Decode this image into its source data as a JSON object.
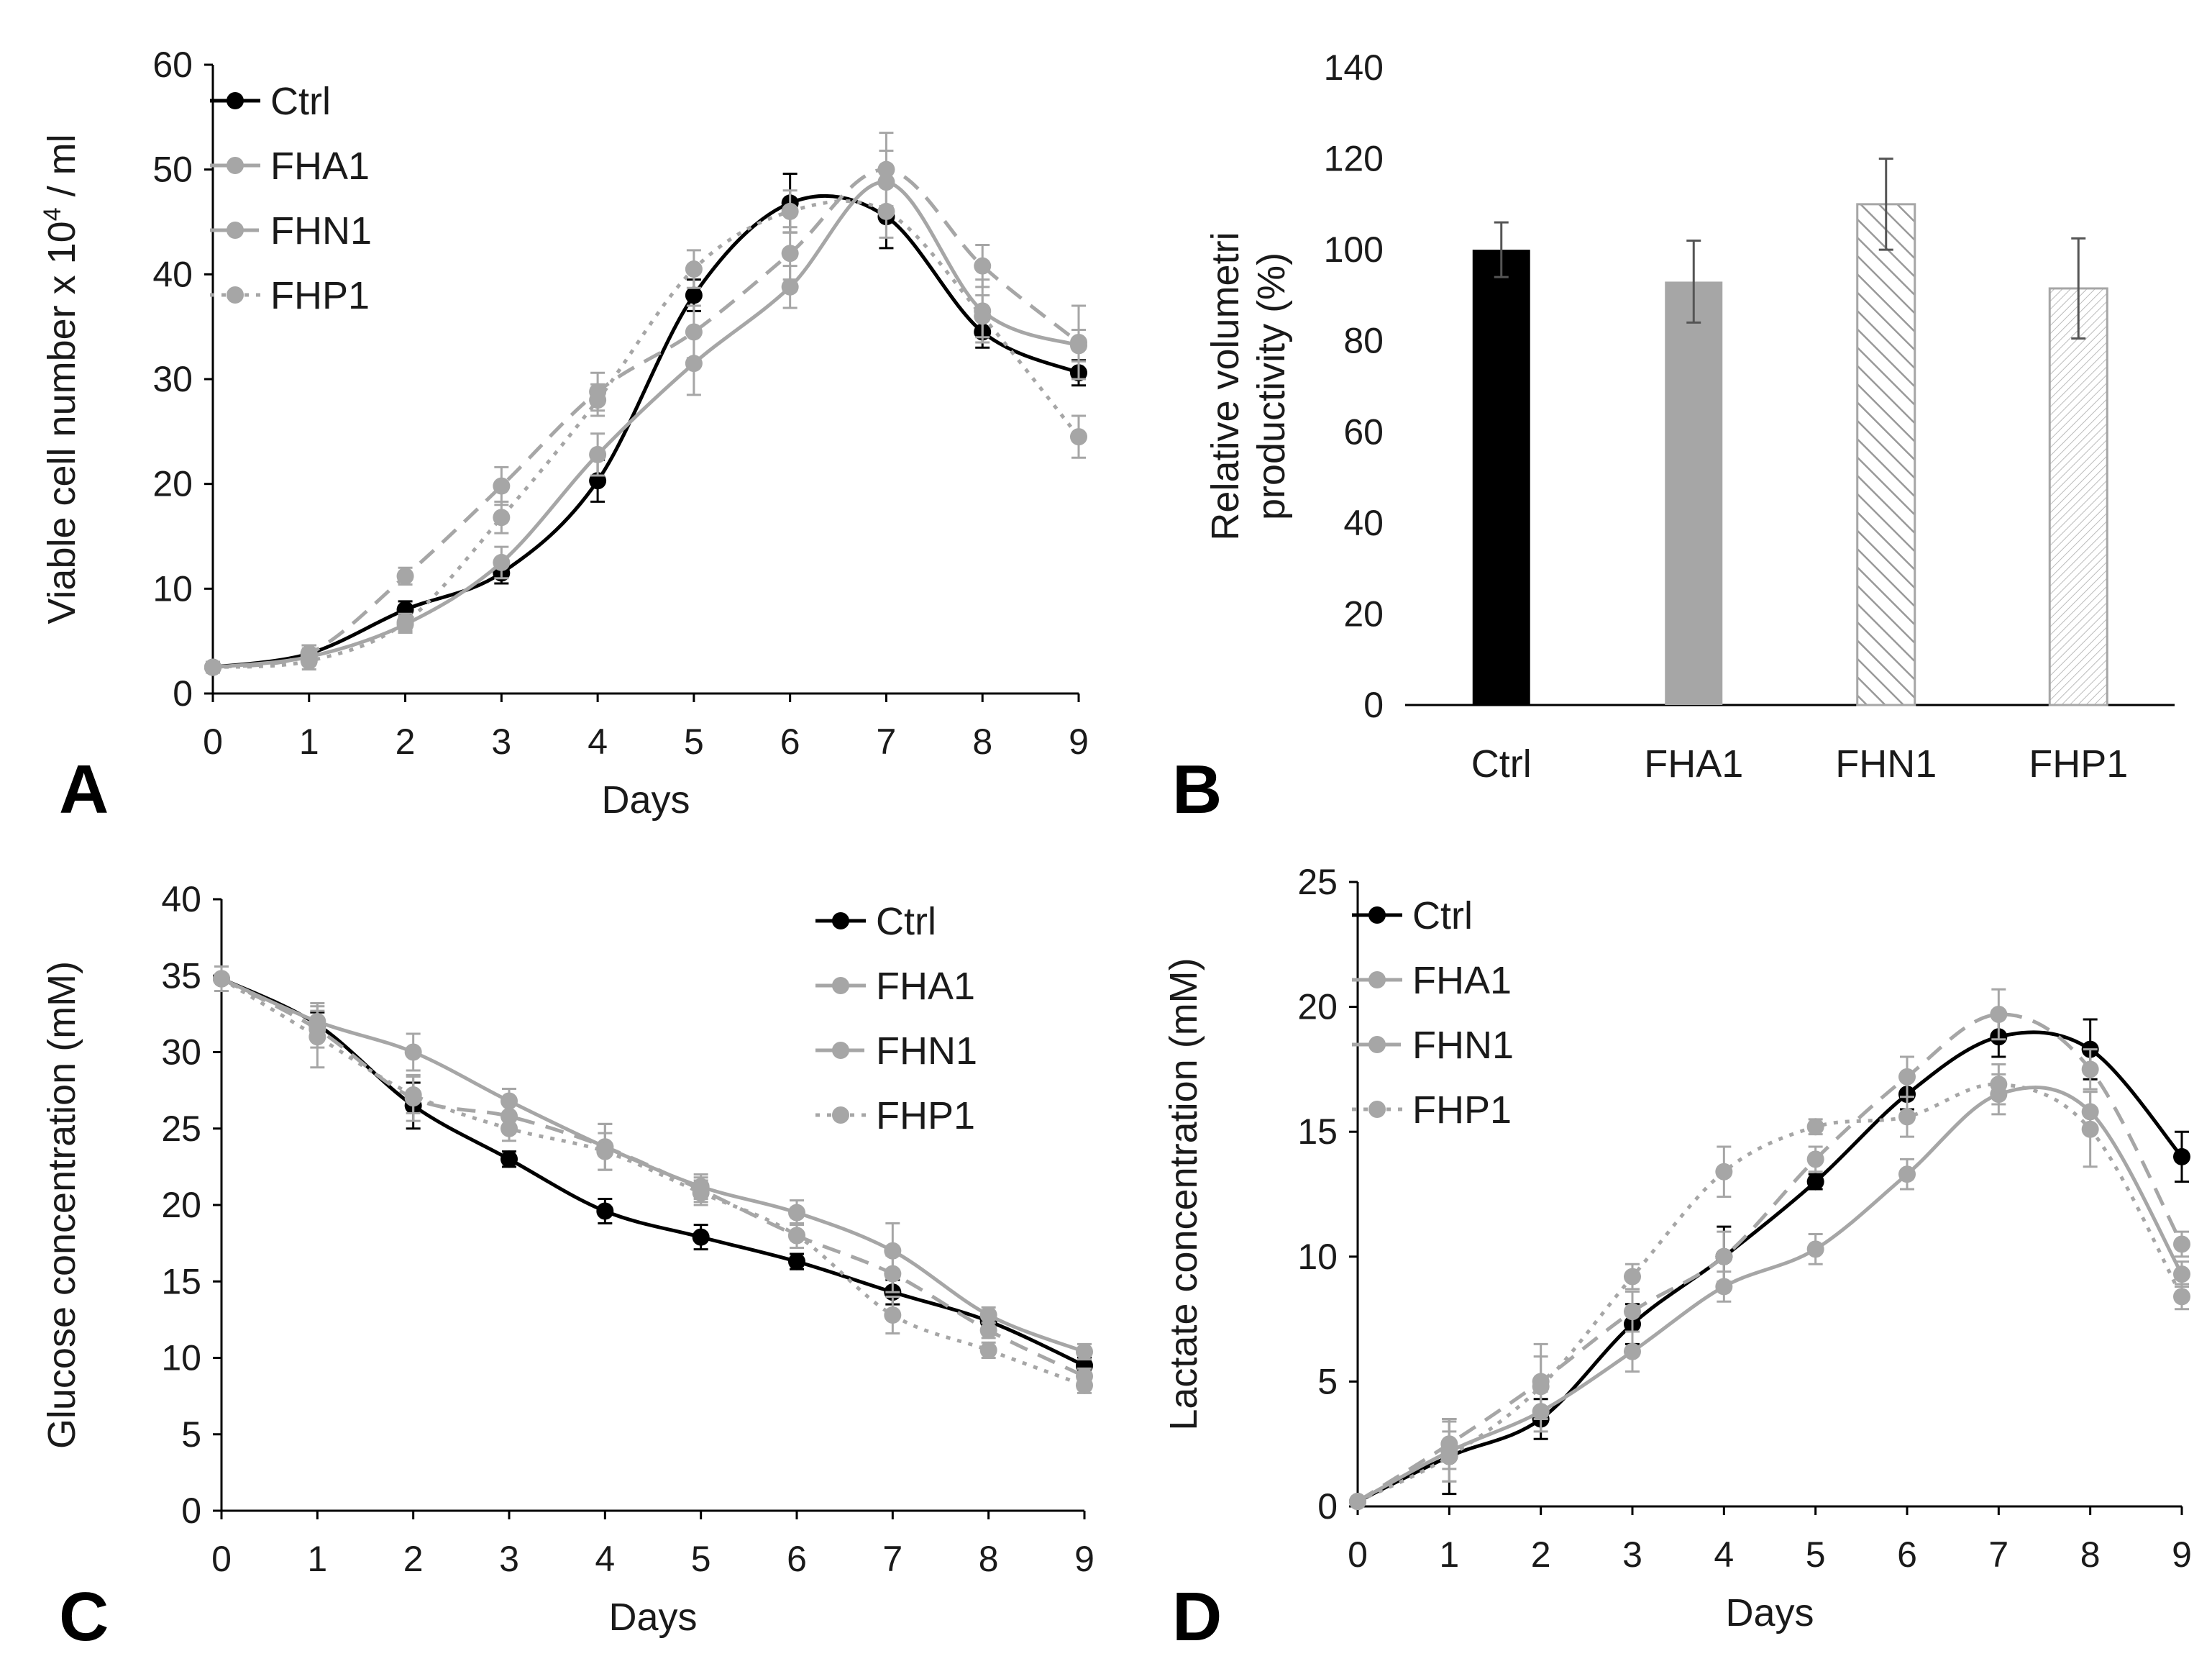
{
  "figure_labels": [
    "A",
    "B",
    "C",
    "D"
  ],
  "colors": {
    "ctrl": "#000000",
    "gray": "#a6a6a6"
  },
  "chart_data": [
    {
      "id": "A",
      "type": "line",
      "xlabel": "Days",
      "ylabel": {
        "before": "Viable cell number x 10",
        "sup": "4",
        "after": " / ml"
      },
      "xlim": [
        0,
        9
      ],
      "ylim": [
        0,
        60
      ],
      "yticks": [
        0,
        10,
        20,
        30,
        40,
        50,
        60
      ],
      "xticks": [
        0,
        1,
        2,
        3,
        4,
        5,
        6,
        7,
        8,
        9
      ],
      "legend_position": "top-left",
      "x": [
        0,
        1,
        2,
        3,
        4,
        5,
        6,
        7,
        8,
        9
      ],
      "series": [
        {
          "name": "Ctrl",
          "style": "solid",
          "color": "#000000",
          "values": [
            2.5,
            3.8,
            8.0,
            11.5,
            20.3,
            38.0,
            46.8,
            45.5,
            34.5,
            30.6
          ],
          "errors": [
            0.5,
            0.8,
            0.8,
            1.0,
            2.0,
            1.5,
            2.8,
            3.0,
            1.5,
            1.2
          ]
        },
        {
          "name": "FHA1",
          "style": "solid",
          "color": "#a6a6a6",
          "values": [
            2.5,
            3.5,
            6.6,
            12.5,
            22.8,
            31.5,
            38.8,
            48.8,
            36.5,
            33.2
          ],
          "errors": [
            0.5,
            0.8,
            0.8,
            1.5,
            2.0,
            3.0,
            2.0,
            3.0,
            3.0,
            1.5
          ]
        },
        {
          "name": "FHN1",
          "style": "dashed",
          "color": "#a6a6a6",
          "values": [
            2.5,
            3.8,
            11.2,
            19.8,
            28.8,
            34.5,
            42.0,
            50.0,
            40.8,
            33.5
          ],
          "errors": [
            0.5,
            0.8,
            0.8,
            1.8,
            1.8,
            2.5,
            2.5,
            3.5,
            2.0,
            3.5
          ]
        },
        {
          "name": "FHP1",
          "style": "dotted",
          "color": "#a6a6a6",
          "values": [
            2.5,
            3.1,
            6.8,
            16.8,
            28.0,
            40.5,
            46.0,
            46.0,
            36.0,
            24.5
          ],
          "errors": [
            0.5,
            0.8,
            0.8,
            1.5,
            1.5,
            1.8,
            2.0,
            2.5,
            2.0,
            2.0
          ]
        }
      ]
    },
    {
      "id": "B",
      "type": "bar",
      "xlabel": "",
      "ylabel_lines": [
        "Relative volumetri",
        "productivity (%)"
      ],
      "ylim": [
        0,
        140
      ],
      "yticks": [
        0,
        20,
        40,
        60,
        80,
        100,
        120,
        140
      ],
      "categories": [
        "Ctrl",
        "FHA1",
        "FHN1",
        "FHP1"
      ],
      "values": [
        100,
        93,
        110,
        91.5
      ],
      "errors": [
        6,
        9,
        10,
        11
      ],
      "fills": [
        "solid-black",
        "solid-gray",
        "diagonal-hatch",
        "fine-hatch"
      ]
    },
    {
      "id": "C",
      "type": "line",
      "xlabel": "Days",
      "ylabel": "Glucose concentration (mM)",
      "xlim": [
        0,
        9
      ],
      "ylim": [
        0,
        40
      ],
      "yticks": [
        0,
        5,
        10,
        15,
        20,
        25,
        30,
        35,
        40
      ],
      "xticks": [
        0,
        1,
        2,
        3,
        4,
        5,
        6,
        7,
        8,
        9
      ],
      "legend_position": "top-right",
      "x": [
        0,
        1,
        2,
        3,
        4,
        5,
        6,
        7,
        8,
        9
      ],
      "series": [
        {
          "name": "Ctrl",
          "style": "solid",
          "color": "#000000",
          "values": [
            34.8,
            31.8,
            26.5,
            23.0,
            19.6,
            17.9,
            16.3,
            14.3,
            12.4,
            9.5
          ],
          "errors": [
            0.8,
            0.8,
            1.5,
            0.5,
            0.8,
            0.8,
            0.5,
            0.8,
            0.5,
            0.5
          ]
        },
        {
          "name": "FHA1",
          "style": "solid",
          "color": "#a6a6a6",
          "values": [
            34.8,
            32.0,
            30.0,
            26.8,
            23.8,
            21.2,
            19.5,
            17.0,
            12.8,
            10.4
          ],
          "errors": [
            0.8,
            1.2,
            1.2,
            0.8,
            1.5,
            0.8,
            0.8,
            1.8,
            0.5,
            0.5
          ]
        },
        {
          "name": "FHN1",
          "style": "dashed",
          "color": "#a6a6a6",
          "values": [
            34.8,
            31.5,
            27.0,
            25.8,
            23.8,
            21.0,
            18.0,
            15.5,
            11.8,
            8.8
          ],
          "errors": [
            0.8,
            1.2,
            1.5,
            0.8,
            1.5,
            0.8,
            0.8,
            1.2,
            0.5,
            0.5
          ]
        },
        {
          "name": "FHP1",
          "style": "dotted",
          "color": "#a6a6a6",
          "values": [
            34.8,
            31.0,
            27.2,
            25.0,
            23.5,
            20.8,
            18.0,
            12.8,
            10.5,
            8.2
          ],
          "errors": [
            0.8,
            2.0,
            1.2,
            0.8,
            1.2,
            0.8,
            0.8,
            1.2,
            0.5,
            0.5
          ]
        }
      ]
    },
    {
      "id": "D",
      "type": "line",
      "xlabel": "Days",
      "ylabel": "Lactate concentration (mM)",
      "xlim": [
        0,
        9
      ],
      "ylim": [
        0,
        25
      ],
      "yticks": [
        0,
        5,
        10,
        15,
        20,
        25
      ],
      "xticks": [
        0,
        1,
        2,
        3,
        4,
        5,
        6,
        7,
        8,
        9
      ],
      "legend_position": "top-left",
      "x": [
        0,
        1,
        2,
        3,
        4,
        5,
        6,
        7,
        8,
        9
      ],
      "series": [
        {
          "name": "Ctrl",
          "style": "solid",
          "color": "#000000",
          "values": [
            0.2,
            2.0,
            3.5,
            7.3,
            10.0,
            13.0,
            16.5,
            18.8,
            18.3,
            14.0
          ],
          "errors": [
            0.1,
            1.5,
            0.8,
            0.8,
            1.2,
            0.3,
            0.6,
            0.8,
            1.2,
            1.0
          ]
        },
        {
          "name": "FHA1",
          "style": "solid",
          "color": "#a6a6a6",
          "values": [
            0.2,
            2.2,
            3.8,
            6.2,
            8.8,
            10.3,
            13.3,
            16.5,
            15.8,
            9.3
          ],
          "errors": [
            0.1,
            1.2,
            0.8,
            0.8,
            0.6,
            0.6,
            0.6,
            0.8,
            0.8,
            0.5
          ]
        },
        {
          "name": "FHN1",
          "style": "dashed",
          "color": "#a6a6a6",
          "values": [
            0.2,
            2.5,
            5.0,
            7.8,
            10.0,
            13.9,
            17.2,
            19.7,
            17.5,
            10.5
          ],
          "errors": [
            0.1,
            1.0,
            1.5,
            0.8,
            1.0,
            0.5,
            0.8,
            1.0,
            0.8,
            0.5
          ]
        },
        {
          "name": "FHP1",
          "style": "dotted",
          "color": "#a6a6a6",
          "values": [
            0.2,
            2.0,
            4.8,
            9.2,
            13.4,
            15.2,
            15.6,
            16.9,
            15.1,
            8.4
          ],
          "errors": [
            0.1,
            1.0,
            1.2,
            0.5,
            1.0,
            0.3,
            0.8,
            0.8,
            1.5,
            0.5
          ]
        }
      ]
    }
  ]
}
